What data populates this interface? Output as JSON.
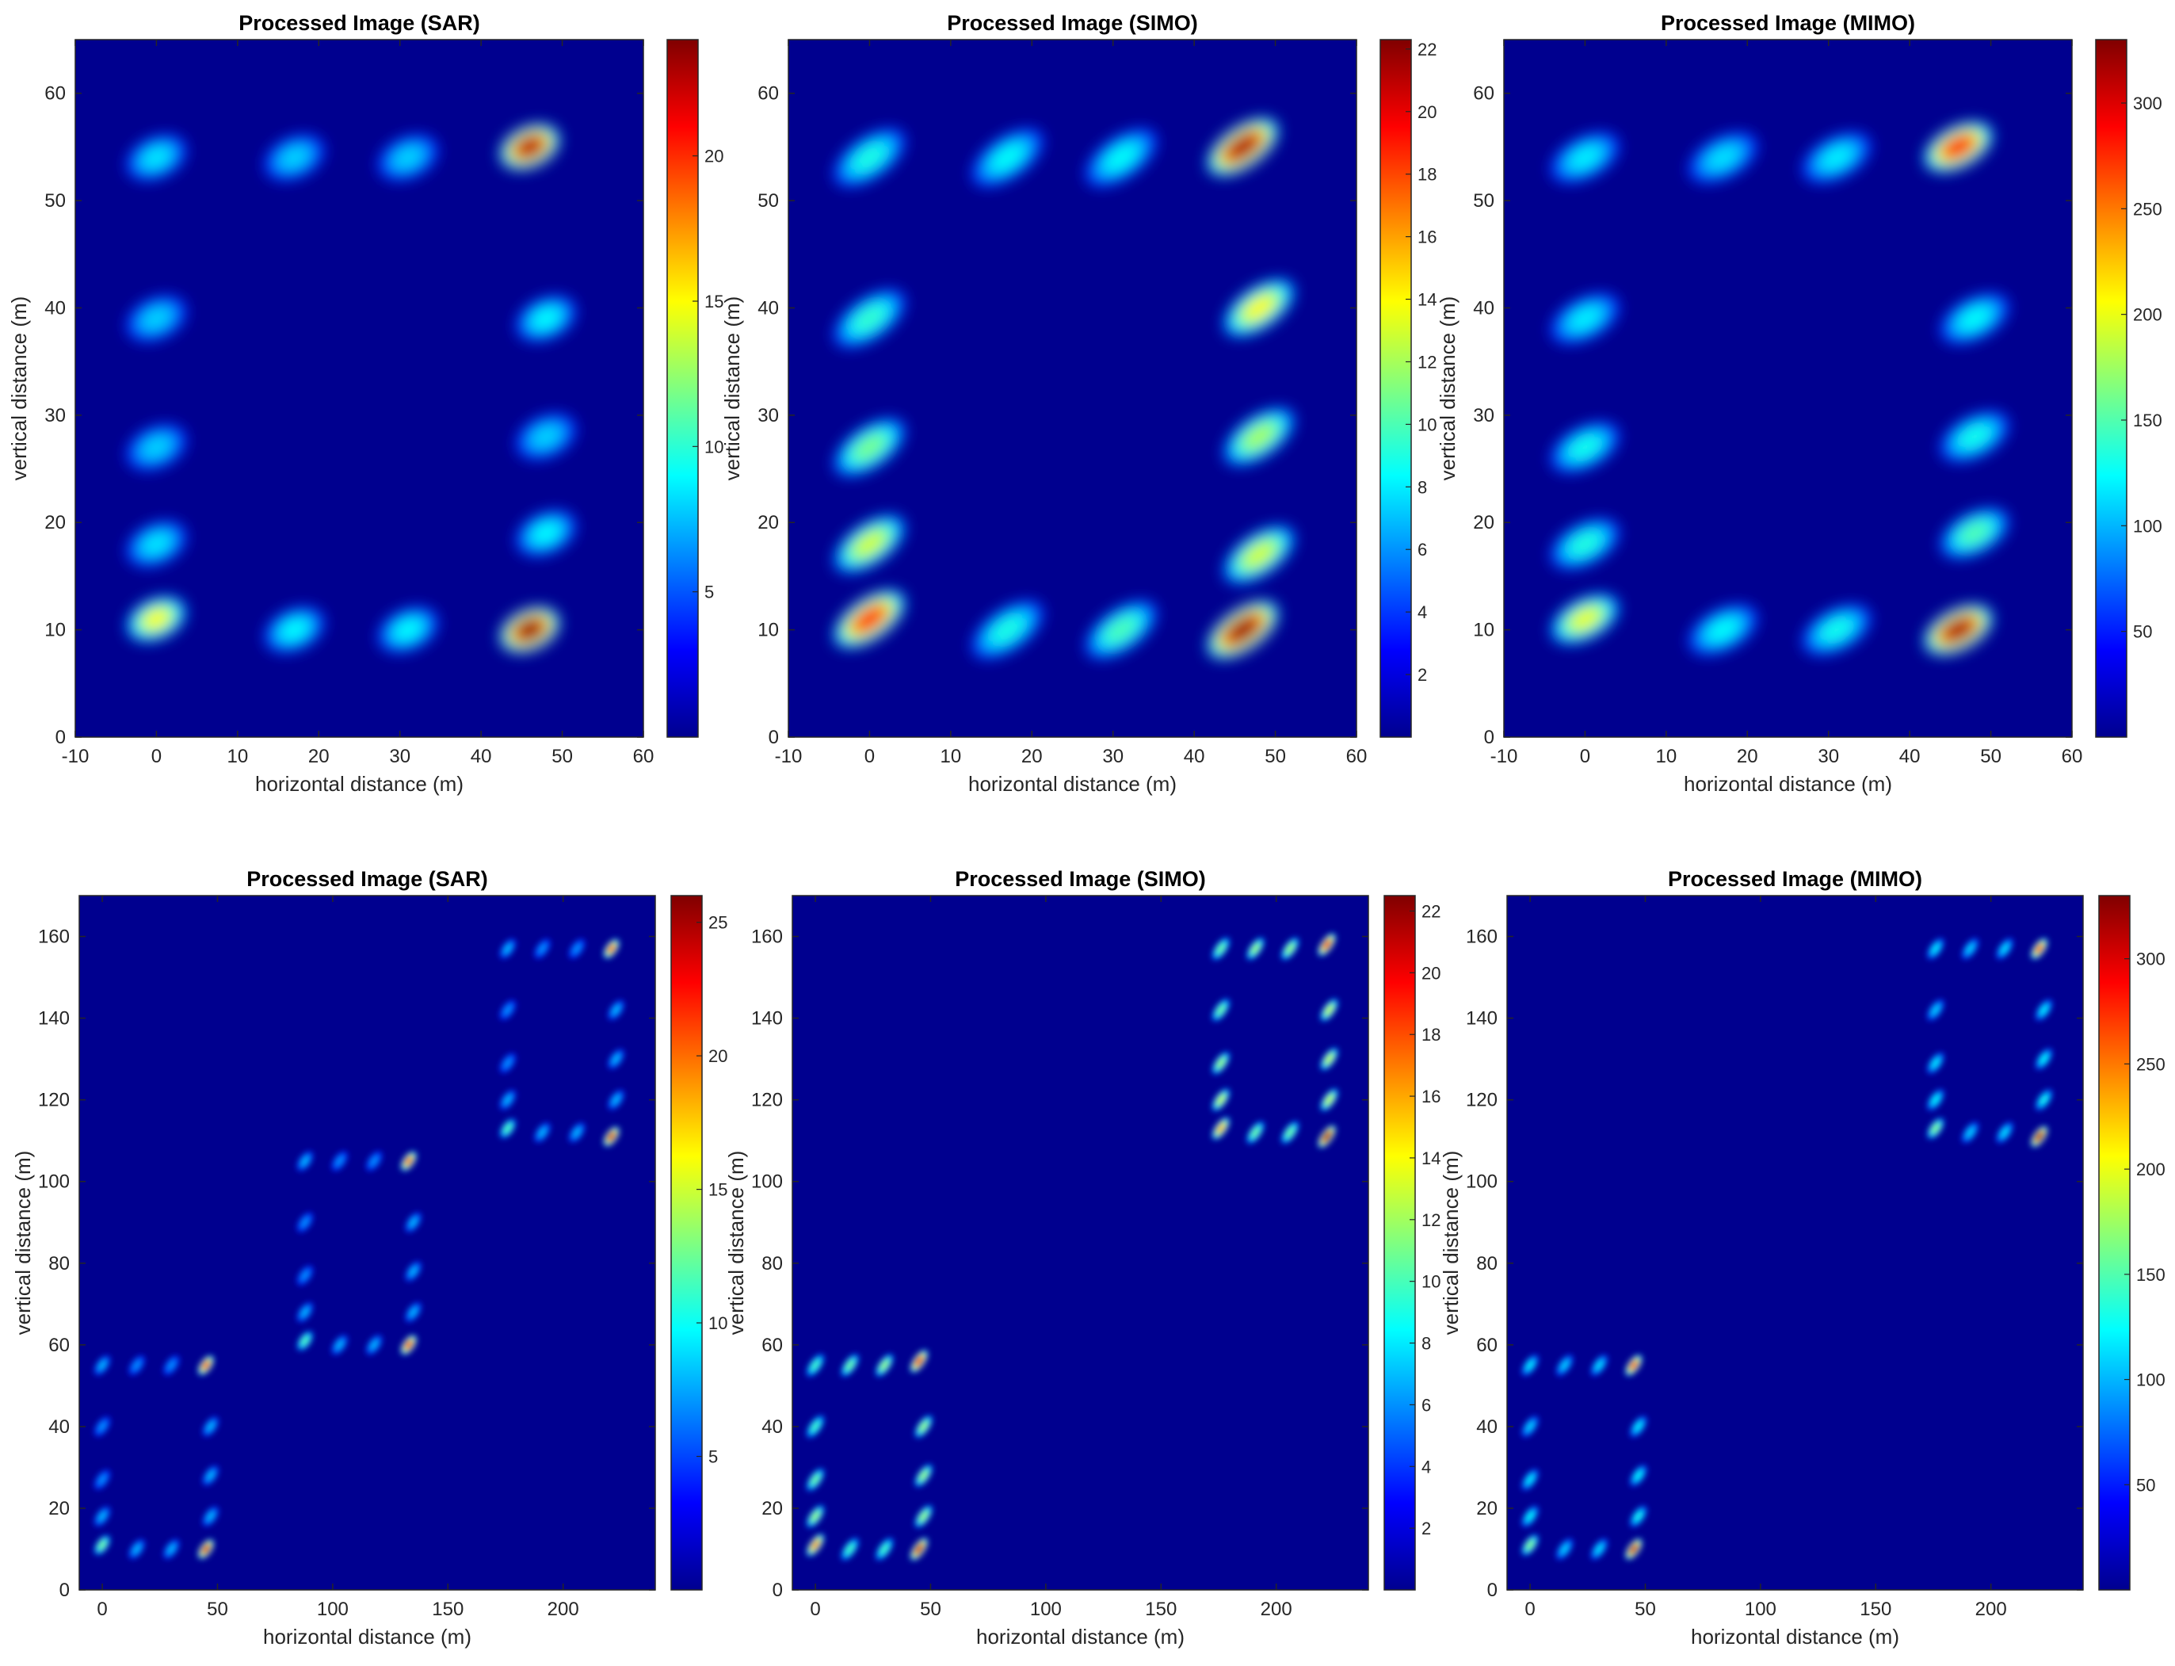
{
  "colormap": "jet",
  "colormap_stops": [
    "#00008f",
    "#0000ff",
    "#0080ff",
    "#00ffff",
    "#80ff80",
    "#ffff00",
    "#ff8000",
    "#ff0000",
    "#800000"
  ],
  "chart_data": [
    {
      "type": "heatmap",
      "title": "Processed Image (SAR)",
      "xlabel": "horizontal distance (m)",
      "ylabel": "vertical distance (m)",
      "xlim": [
        -10,
        60
      ],
      "ylim": [
        0,
        65
      ],
      "xticks": [
        -10,
        0,
        10,
        20,
        30,
        40,
        50,
        60
      ],
      "yticks": [
        0,
        10,
        20,
        30,
        40,
        50,
        60
      ],
      "colorbar": {
        "min": 0,
        "max": 24,
        "ticks": [
          5,
          10,
          15,
          20
        ]
      },
      "blobs": [
        {
          "x": 0,
          "y": 54,
          "v": 8.5
        },
        {
          "x": 17,
          "y": 54,
          "v": 8
        },
        {
          "x": 31,
          "y": 54,
          "v": 8
        },
        {
          "x": 46,
          "y": 55,
          "v": 23
        },
        {
          "x": 0,
          "y": 39,
          "v": 8
        },
        {
          "x": 48,
          "y": 39,
          "v": 9
        },
        {
          "x": 0,
          "y": 27,
          "v": 8
        },
        {
          "x": 48,
          "y": 28,
          "v": 8
        },
        {
          "x": 0,
          "y": 18,
          "v": 8.5
        },
        {
          "x": 48,
          "y": 19,
          "v": 9
        },
        {
          "x": 0,
          "y": 11,
          "v": 15
        },
        {
          "x": 17,
          "y": 10,
          "v": 9
        },
        {
          "x": 31,
          "y": 10,
          "v": 9
        },
        {
          "x": 46,
          "y": 10,
          "v": 24
        }
      ]
    },
    {
      "type": "heatmap",
      "title": "Processed Image (SIMO)",
      "xlabel": "horizontal distance (m)",
      "ylabel": "vertical distance (m)",
      "xlim": [
        -10,
        60
      ],
      "ylim": [
        0,
        65
      ],
      "xticks": [
        -10,
        0,
        10,
        20,
        30,
        40,
        50,
        60
      ],
      "yticks": [
        0,
        10,
        20,
        30,
        40,
        50,
        60
      ],
      "colorbar": {
        "min": 0,
        "max": 22.3,
        "ticks": [
          2,
          4,
          6,
          8,
          10,
          12,
          14,
          16,
          18,
          20,
          22
        ]
      },
      "blobs": [
        {
          "x": 0,
          "y": 54,
          "v": 9
        },
        {
          "x": 17,
          "y": 54,
          "v": 8.5
        },
        {
          "x": 31,
          "y": 54,
          "v": 8.5
        },
        {
          "x": 46,
          "y": 55,
          "v": 21.5
        },
        {
          "x": 0,
          "y": 39,
          "v": 9.5
        },
        {
          "x": 48,
          "y": 40,
          "v": 14
        },
        {
          "x": 0,
          "y": 27,
          "v": 11
        },
        {
          "x": 48,
          "y": 28,
          "v": 12
        },
        {
          "x": 0,
          "y": 18,
          "v": 13
        },
        {
          "x": 48,
          "y": 17,
          "v": 13
        },
        {
          "x": 0,
          "y": 11,
          "v": 19
        },
        {
          "x": 17,
          "y": 10,
          "v": 9
        },
        {
          "x": 31,
          "y": 10,
          "v": 10
        },
        {
          "x": 46,
          "y": 10,
          "v": 22
        }
      ]
    },
    {
      "type": "heatmap",
      "title": "Processed Image (MIMO)",
      "xlabel": "horizontal distance (m)",
      "ylabel": "vertical distance (m)",
      "xlim": [
        -10,
        60
      ],
      "ylim": [
        0,
        65
      ],
      "xticks": [
        -10,
        0,
        10,
        20,
        30,
        40,
        50,
        60
      ],
      "yticks": [
        0,
        10,
        20,
        30,
        40,
        50,
        60
      ],
      "colorbar": {
        "min": 0,
        "max": 330,
        "ticks": [
          50,
          100,
          150,
          200,
          250,
          300
        ]
      },
      "blobs": [
        {
          "x": 0,
          "y": 54,
          "v": 120
        },
        {
          "x": 17,
          "y": 54,
          "v": 115
        },
        {
          "x": 31,
          "y": 54,
          "v": 120
        },
        {
          "x": 46,
          "y": 55,
          "v": 290
        },
        {
          "x": 0,
          "y": 39,
          "v": 120
        },
        {
          "x": 48,
          "y": 39,
          "v": 125
        },
        {
          "x": 0,
          "y": 27,
          "v": 130
        },
        {
          "x": 48,
          "y": 28,
          "v": 130
        },
        {
          "x": 0,
          "y": 18,
          "v": 135
        },
        {
          "x": 48,
          "y": 19,
          "v": 150
        },
        {
          "x": 0,
          "y": 11,
          "v": 200
        },
        {
          "x": 17,
          "y": 10,
          "v": 125
        },
        {
          "x": 31,
          "y": 10,
          "v": 130
        },
        {
          "x": 46,
          "y": 10,
          "v": 320
        }
      ]
    },
    {
      "type": "heatmap",
      "title": "Processed Image (SAR)",
      "xlabel": "horizontal distance (m)",
      "ylabel": "vertical distance (m)",
      "xlim": [
        -10,
        240
      ],
      "ylim": [
        0,
        170
      ],
      "xticks": [
        0,
        50,
        100,
        150,
        200
      ],
      "yticks": [
        0,
        20,
        40,
        60,
        80,
        100,
        120,
        140,
        160
      ],
      "colorbar": {
        "min": 0,
        "max": 26,
        "ticks": [
          5,
          10,
          15,
          20,
          25
        ]
      },
      "blobs": [
        {
          "x": 0,
          "y": 55,
          "v": 8
        },
        {
          "x": 15,
          "y": 55,
          "v": 7
        },
        {
          "x": 30,
          "y": 55,
          "v": 7
        },
        {
          "x": 45,
          "y": 55,
          "v": 22
        },
        {
          "x": 0,
          "y": 40,
          "v": 7
        },
        {
          "x": 47,
          "y": 40,
          "v": 8
        },
        {
          "x": 0,
          "y": 27,
          "v": 7
        },
        {
          "x": 47,
          "y": 28,
          "v": 8
        },
        {
          "x": 0,
          "y": 18,
          "v": 8
        },
        {
          "x": 47,
          "y": 18,
          "v": 8
        },
        {
          "x": 0,
          "y": 11,
          "v": 13
        },
        {
          "x": 15,
          "y": 10,
          "v": 8
        },
        {
          "x": 30,
          "y": 10,
          "v": 8
        },
        {
          "x": 45,
          "y": 10,
          "v": 24
        },
        {
          "x": 88,
          "y": 105,
          "v": 8
        },
        {
          "x": 103,
          "y": 105,
          "v": 7
        },
        {
          "x": 118,
          "y": 105,
          "v": 7
        },
        {
          "x": 133,
          "y": 105,
          "v": 21
        },
        {
          "x": 88,
          "y": 90,
          "v": 7
        },
        {
          "x": 135,
          "y": 90,
          "v": 8
        },
        {
          "x": 88,
          "y": 77,
          "v": 7
        },
        {
          "x": 135,
          "y": 78,
          "v": 8
        },
        {
          "x": 88,
          "y": 68,
          "v": 8
        },
        {
          "x": 135,
          "y": 68,
          "v": 8
        },
        {
          "x": 88,
          "y": 61,
          "v": 12
        },
        {
          "x": 103,
          "y": 60,
          "v": 8
        },
        {
          "x": 118,
          "y": 60,
          "v": 8
        },
        {
          "x": 133,
          "y": 60,
          "v": 23
        },
        {
          "x": 176,
          "y": 157,
          "v": 8
        },
        {
          "x": 191,
          "y": 157,
          "v": 7
        },
        {
          "x": 206,
          "y": 157,
          "v": 7
        },
        {
          "x": 221,
          "y": 157,
          "v": 21
        },
        {
          "x": 176,
          "y": 142,
          "v": 7
        },
        {
          "x": 223,
          "y": 142,
          "v": 8
        },
        {
          "x": 176,
          "y": 129,
          "v": 7
        },
        {
          "x": 223,
          "y": 130,
          "v": 8
        },
        {
          "x": 176,
          "y": 120,
          "v": 8
        },
        {
          "x": 223,
          "y": 120,
          "v": 8
        },
        {
          "x": 176,
          "y": 113,
          "v": 12
        },
        {
          "x": 191,
          "y": 112,
          "v": 8
        },
        {
          "x": 206,
          "y": 112,
          "v": 8
        },
        {
          "x": 221,
          "y": 111,
          "v": 24
        }
      ]
    },
    {
      "type": "heatmap",
      "title": "Processed Image (SIMO)",
      "xlabel": "horizontal distance (m)",
      "ylabel": "vertical distance (m)",
      "xlim": [
        -10,
        240
      ],
      "ylim": [
        0,
        170
      ],
      "xticks": [
        0,
        50,
        100,
        150,
        200
      ],
      "yticks": [
        0,
        20,
        40,
        60,
        80,
        100,
        120,
        140,
        160
      ],
      "colorbar": {
        "min": 0,
        "max": 22.5,
        "ticks": [
          2,
          4,
          6,
          8,
          10,
          12,
          14,
          16,
          18,
          20,
          22
        ]
      },
      "blobs": [
        {
          "x": 0,
          "y": 55,
          "v": 10
        },
        {
          "x": 15,
          "y": 55,
          "v": 11
        },
        {
          "x": 30,
          "y": 55,
          "v": 12
        },
        {
          "x": 45,
          "y": 56,
          "v": 20
        },
        {
          "x": 0,
          "y": 40,
          "v": 10
        },
        {
          "x": 47,
          "y": 40,
          "v": 12
        },
        {
          "x": 0,
          "y": 27,
          "v": 11
        },
        {
          "x": 47,
          "y": 28,
          "v": 12
        },
        {
          "x": 0,
          "y": 18,
          "v": 12
        },
        {
          "x": 47,
          "y": 18,
          "v": 12
        },
        {
          "x": 0,
          "y": 11,
          "v": 17
        },
        {
          "x": 15,
          "y": 10,
          "v": 10
        },
        {
          "x": 30,
          "y": 10,
          "v": 10
        },
        {
          "x": 45,
          "y": 10,
          "v": 21
        },
        {
          "x": 176,
          "y": 157,
          "v": 11
        },
        {
          "x": 191,
          "y": 157,
          "v": 12
        },
        {
          "x": 206,
          "y": 157,
          "v": 12
        },
        {
          "x": 222,
          "y": 158,
          "v": 20
        },
        {
          "x": 176,
          "y": 142,
          "v": 11
        },
        {
          "x": 223,
          "y": 142,
          "v": 13
        },
        {
          "x": 176,
          "y": 129,
          "v": 12
        },
        {
          "x": 223,
          "y": 130,
          "v": 13
        },
        {
          "x": 176,
          "y": 120,
          "v": 13
        },
        {
          "x": 223,
          "y": 120,
          "v": 13
        },
        {
          "x": 176,
          "y": 113,
          "v": 16
        },
        {
          "x": 191,
          "y": 112,
          "v": 11
        },
        {
          "x": 206,
          "y": 112,
          "v": 11
        },
        {
          "x": 222,
          "y": 111,
          "v": 22
        }
      ]
    },
    {
      "type": "heatmap",
      "title": "Processed Image (MIMO)",
      "xlabel": "horizontal distance (m)",
      "ylabel": "vertical distance (m)",
      "xlim": [
        -10,
        240
      ],
      "ylim": [
        0,
        170
      ],
      "xticks": [
        0,
        50,
        100,
        150,
        200
      ],
      "yticks": [
        0,
        20,
        40,
        60,
        80,
        100,
        120,
        140,
        160
      ],
      "colorbar": {
        "min": 0,
        "max": 330,
        "ticks": [
          50,
          100,
          150,
          200,
          250,
          300
        ]
      },
      "blobs": [
        {
          "x": 0,
          "y": 55,
          "v": 120
        },
        {
          "x": 15,
          "y": 55,
          "v": 110
        },
        {
          "x": 30,
          "y": 55,
          "v": 115
        },
        {
          "x": 45,
          "y": 55,
          "v": 280
        },
        {
          "x": 0,
          "y": 40,
          "v": 110
        },
        {
          "x": 47,
          "y": 40,
          "v": 120
        },
        {
          "x": 0,
          "y": 27,
          "v": 120
        },
        {
          "x": 47,
          "y": 28,
          "v": 125
        },
        {
          "x": 0,
          "y": 18,
          "v": 125
        },
        {
          "x": 47,
          "y": 18,
          "v": 130
        },
        {
          "x": 0,
          "y": 11,
          "v": 170
        },
        {
          "x": 15,
          "y": 10,
          "v": 110
        },
        {
          "x": 30,
          "y": 10,
          "v": 115
        },
        {
          "x": 45,
          "y": 10,
          "v": 310
        },
        {
          "x": 176,
          "y": 157,
          "v": 120
        },
        {
          "x": 191,
          "y": 157,
          "v": 110
        },
        {
          "x": 206,
          "y": 157,
          "v": 115
        },
        {
          "x": 221,
          "y": 157,
          "v": 270
        },
        {
          "x": 176,
          "y": 142,
          "v": 110
        },
        {
          "x": 223,
          "y": 142,
          "v": 120
        },
        {
          "x": 176,
          "y": 129,
          "v": 120
        },
        {
          "x": 223,
          "y": 130,
          "v": 125
        },
        {
          "x": 176,
          "y": 120,
          "v": 125
        },
        {
          "x": 223,
          "y": 120,
          "v": 130
        },
        {
          "x": 176,
          "y": 113,
          "v": 170
        },
        {
          "x": 191,
          "y": 112,
          "v": 110
        },
        {
          "x": 206,
          "y": 112,
          "v": 115
        },
        {
          "x": 221,
          "y": 111,
          "v": 320
        }
      ]
    }
  ]
}
